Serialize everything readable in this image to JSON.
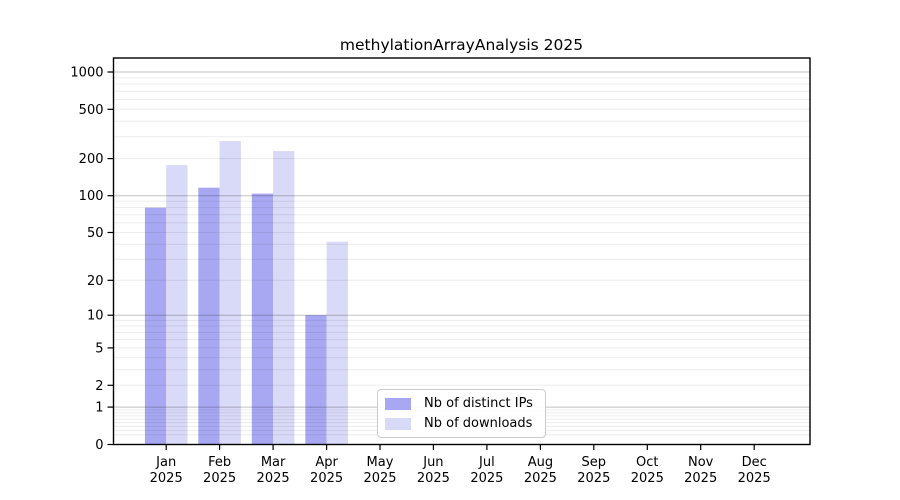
{
  "chart_data": {
    "type": "bar",
    "title": "methylationArrayAnalysis 2025",
    "months": [
      "Jan",
      "Feb",
      "Mar",
      "Apr",
      "May",
      "Jun",
      "Jul",
      "Aug",
      "Sep",
      "Oct",
      "Nov",
      "Dec"
    ],
    "year": "2025",
    "categories": [
      "Jan 2025",
      "Feb 2025",
      "Mar 2025",
      "Apr 2025",
      "May 2025",
      "Jun 2025",
      "Jul 2025",
      "Aug 2025",
      "Sep 2025",
      "Oct 2025",
      "Nov 2025",
      "Dec 2025"
    ],
    "series": [
      {
        "name": "Nb of distinct IPs",
        "color": "#a8a8f2",
        "values": [
          80,
          116,
          104,
          10,
          0,
          0,
          0,
          0,
          0,
          0,
          0,
          0
        ]
      },
      {
        "name": "Nb of downloads",
        "color": "#d9d9f8",
        "values": [
          177,
          277,
          230,
          42,
          0,
          0,
          0,
          0,
          0,
          0,
          0,
          0
        ]
      }
    ],
    "yticks": [
      1000,
      500,
      200,
      100,
      50,
      20,
      10,
      5,
      2,
      1,
      0
    ],
    "yscale": "log10(value+1)",
    "ylim": [
      0,
      1300
    ],
    "xlabel": "",
    "ylabel": "",
    "grid": "major lines at powers of 10, minor log subdivisions, drawn over bars",
    "legend_position": "bottom-center",
    "colors": {
      "major_grid": "rgba(0,0,0,0.24)",
      "minor_grid": "rgba(0,0,0,0.075)",
      "axis": "#000000",
      "text": "#000000"
    }
  }
}
